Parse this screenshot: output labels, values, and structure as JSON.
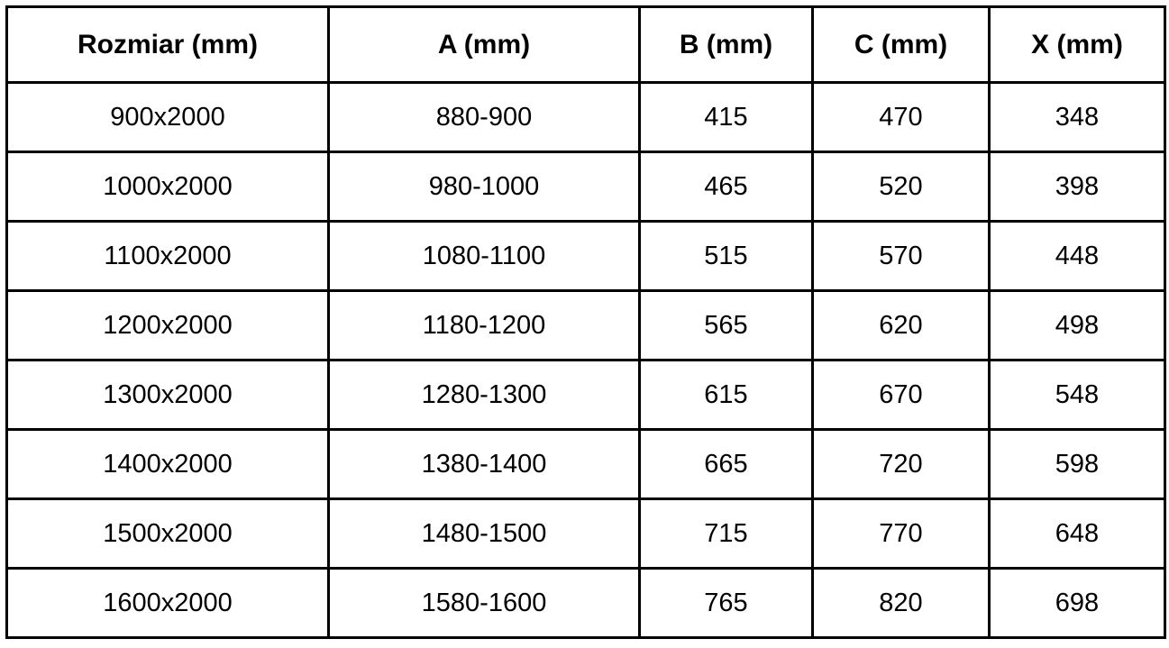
{
  "table": {
    "headers": [
      "Rozmiar (mm)",
      "A (mm)",
      "B (mm)",
      "C (mm)",
      "X (mm)"
    ],
    "rows": [
      [
        "900x2000",
        "880-900",
        "415",
        "470",
        "348"
      ],
      [
        "1000x2000",
        "980-1000",
        "465",
        "520",
        "398"
      ],
      [
        "1100x2000",
        "1080-1100",
        "515",
        "570",
        "448"
      ],
      [
        "1200x2000",
        "1180-1200",
        "565",
        "620",
        "498"
      ],
      [
        "1300x2000",
        "1280-1300",
        "615",
        "670",
        "548"
      ],
      [
        "1400x2000",
        "1380-1400",
        "665",
        "720",
        "598"
      ],
      [
        "1500x2000",
        "1480-1500",
        "715",
        "770",
        "648"
      ],
      [
        "1600x2000",
        "1580-1600",
        "765",
        "820",
        "698"
      ]
    ]
  },
  "colors": {
    "border": "#000000",
    "text": "#000000",
    "background": "#ffffff"
  },
  "chart_data": {
    "type": "table",
    "columns": [
      "Rozmiar (mm)",
      "A (mm)",
      "B (mm)",
      "C (mm)",
      "X (mm)"
    ],
    "rows": [
      [
        "900x2000",
        "880-900",
        415,
        470,
        348
      ],
      [
        "1000x2000",
        "980-1000",
        465,
        520,
        398
      ],
      [
        "1100x2000",
        "1080-1100",
        515,
        570,
        448
      ],
      [
        "1200x2000",
        "1180-1200",
        565,
        620,
        498
      ],
      [
        "1300x2000",
        "1280-1300",
        615,
        670,
        548
      ],
      [
        "1400x2000",
        "1380-1400",
        665,
        720,
        598
      ],
      [
        "1500x2000",
        "1480-1500",
        715,
        770,
        648
      ],
      [
        "1600x2000",
        "1580-1600",
        765,
        820,
        698
      ]
    ]
  }
}
